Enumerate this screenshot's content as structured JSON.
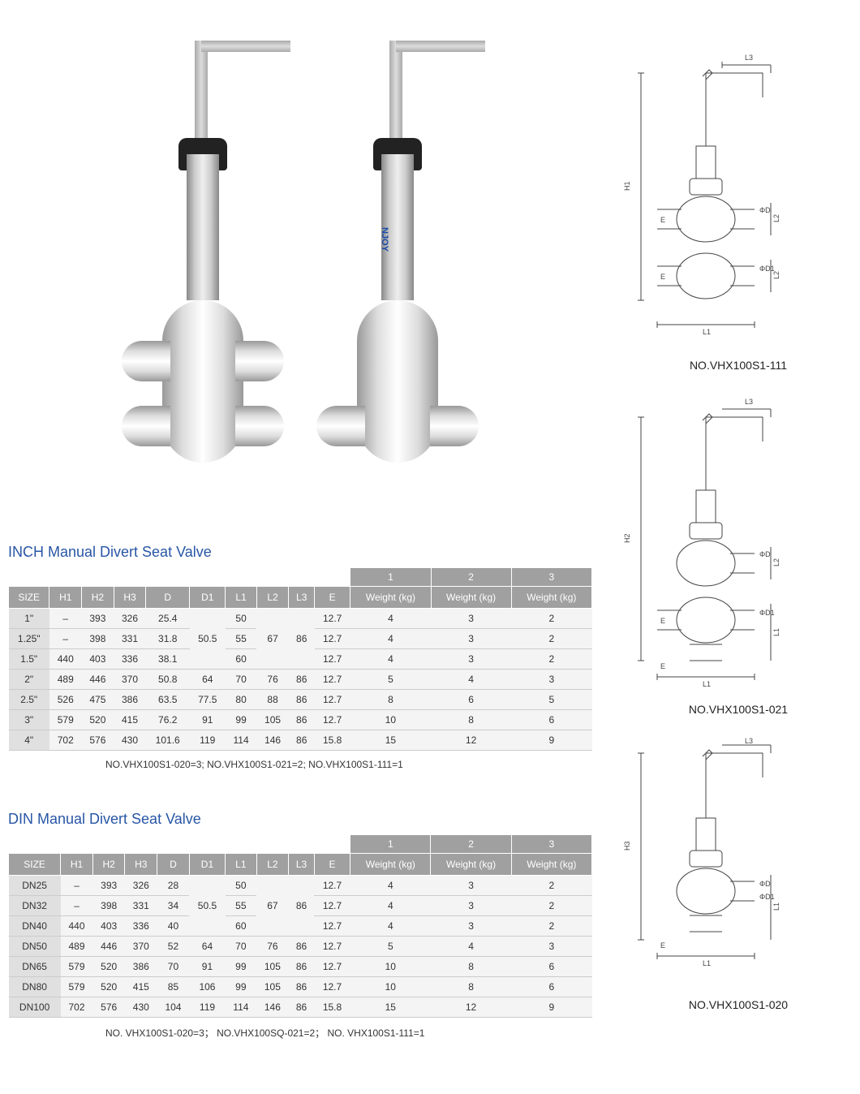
{
  "diagram_labels": {
    "d1": "NO.VHX100S1-111",
    "d2": "NO.VHX100S1-021",
    "d3": "NO.VHX100S1-020"
  },
  "brand_text": "NJOY",
  "table_inch": {
    "title": "INCH Manual Divert Seat Valve",
    "weight_nums": [
      "1",
      "2",
      "3"
    ],
    "columns": [
      "SIZE",
      "H1",
      "H2",
      "H3",
      "D",
      "D1",
      "L1",
      "L2",
      "L3",
      "E",
      "Weight (kg)",
      "Weight (kg)",
      "Weight (kg)"
    ],
    "rows": [
      [
        "1\"",
        "–",
        "393",
        "326",
        "25.4",
        "50.5",
        "50",
        "67",
        "86",
        "12.7",
        "4",
        "3",
        "2"
      ],
      [
        "1.25\"",
        "–",
        "398",
        "331",
        "31.8",
        "50.5",
        "55",
        "67",
        "86",
        "12.7",
        "4",
        "3",
        "2"
      ],
      [
        "1.5\"",
        "440",
        "403",
        "336",
        "38.1",
        "50.5",
        "60",
        "67",
        "86",
        "12.7",
        "4",
        "3",
        "2"
      ],
      [
        "2\"",
        "489",
        "446",
        "370",
        "50.8",
        "64",
        "70",
        "76",
        "86",
        "12.7",
        "5",
        "4",
        "3"
      ],
      [
        "2.5\"",
        "526",
        "475",
        "386",
        "63.5",
        "77.5",
        "80",
        "88",
        "86",
        "12.7",
        "8",
        "6",
        "5"
      ],
      [
        "3\"",
        "579",
        "520",
        "415",
        "76.2",
        "91",
        "99",
        "105",
        "86",
        "12.7",
        "10",
        "8",
        "6"
      ],
      [
        "4\"",
        "702",
        "576",
        "430",
        "101.6",
        "119",
        "114",
        "146",
        "86",
        "15.8",
        "15",
        "12",
        "9"
      ]
    ],
    "merge_ranges": {
      "D1": [
        0,
        2
      ],
      "L2": [
        0,
        2
      ],
      "L3": [
        0,
        2
      ]
    },
    "notes": "NO.VHX100S1-020=3; NO.VHX100S1-021=2; NO.VHX100S1-111=1"
  },
  "table_din": {
    "title": "DIN Manual Divert Seat Valve",
    "weight_nums": [
      "1",
      "2",
      "3"
    ],
    "columns": [
      "SIZE",
      "H1",
      "H2",
      "H3",
      "D",
      "D1",
      "L1",
      "L2",
      "L3",
      "E",
      "Weight (kg)",
      "Weight (kg)",
      "Weight (kg)"
    ],
    "rows": [
      [
        "DN25",
        "–",
        "393",
        "326",
        "28",
        "50.5",
        "50",
        "67",
        "86",
        "12.7",
        "4",
        "3",
        "2"
      ],
      [
        "DN32",
        "–",
        "398",
        "331",
        "34",
        "50.5",
        "55",
        "67",
        "86",
        "12.7",
        "4",
        "3",
        "2"
      ],
      [
        "DN40",
        "440",
        "403",
        "336",
        "40",
        "50.5",
        "60",
        "67",
        "86",
        "12.7",
        "4",
        "3",
        "2"
      ],
      [
        "DN50",
        "489",
        "446",
        "370",
        "52",
        "64",
        "70",
        "76",
        "86",
        "12.7",
        "5",
        "4",
        "3"
      ],
      [
        "DN65",
        "579",
        "520",
        "386",
        "70",
        "91",
        "99",
        "105",
        "86",
        "12.7",
        "10",
        "8",
        "6"
      ],
      [
        "DN80",
        "579",
        "520",
        "415",
        "85",
        "106",
        "99",
        "105",
        "86",
        "12.7",
        "10",
        "8",
        "6"
      ],
      [
        "DN100",
        "702",
        "576",
        "430",
        "104",
        "119",
        "114",
        "146",
        "86",
        "15.8",
        "15",
        "12",
        "9"
      ]
    ],
    "merge_ranges": {
      "D1": [
        0,
        2
      ],
      "L2": [
        0,
        2
      ],
      "L3": [
        0,
        2
      ]
    },
    "notes": "NO. VHX100S1-020=3； NO.VHX100SQ-021=2； NO. VHX100S1-111=1"
  },
  "dim_labels": [
    "H1",
    "H2",
    "H3",
    "L1",
    "L2",
    "L3",
    "E",
    "ΦD",
    "ΦD1"
  ],
  "styling": {
    "title_color": "#2856a5",
    "header_bg": "#a0a0a0",
    "header_fg": "#ffffff",
    "cell_bg": "#f4f4f4",
    "size_cell_bg": "#e0e0e0",
    "border_color": "#cccccc",
    "font_size_body": 12,
    "font_size_title": 18
  }
}
